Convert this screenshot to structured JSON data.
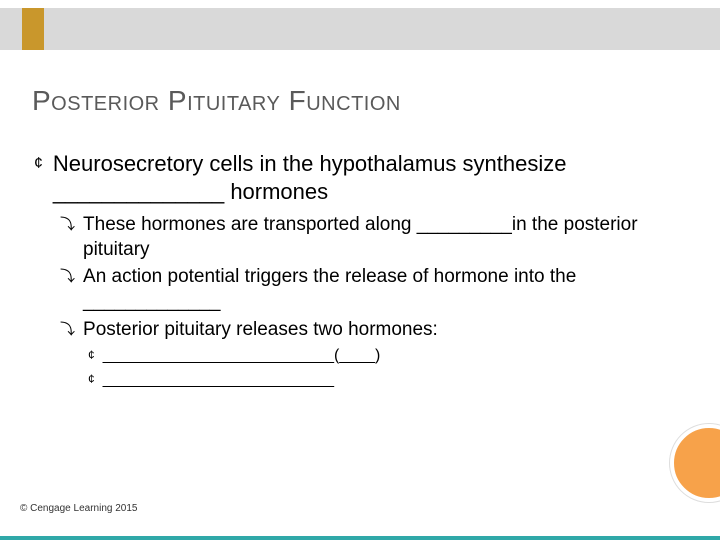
{
  "colors": {
    "top_bar": "#d9d9d9",
    "top_accent": "#c9972c",
    "title_text": "#5a5a5a",
    "body_text": "#000000",
    "circle_fill": "#f7a24a",
    "circle_border": "#ffffff",
    "bottom_border": "#2fa8a8",
    "background": "#ffffff"
  },
  "typography": {
    "title_fontsize": 28,
    "lvl1_fontsize": 22,
    "lvl2_fontsize": 19,
    "lvl3_fontsize": 16,
    "footer_fontsize": 10,
    "font_family": "Arial"
  },
  "title": "Posterior Pituitary Function",
  "lvl1": {
    "text": "Neurosecretory cells in the hypothalamus synthesize ______________ hormones"
  },
  "lvl2_items": [
    {
      "text": "These hormones are transported along _________in the posterior pituitary"
    },
    {
      "text": "An action potential triggers the release of hormone into the _____________"
    },
    {
      "text": "Posterior pituitary releases two hormones:"
    }
  ],
  "lvl3_items": [
    {
      "text": "__________________________(____)"
    },
    {
      "text": "__________________________"
    }
  ],
  "bullets": {
    "lvl1": "¢",
    "lvl2": "⤵",
    "lvl3": "¢"
  },
  "footer": "© Cengage Learning 2015"
}
